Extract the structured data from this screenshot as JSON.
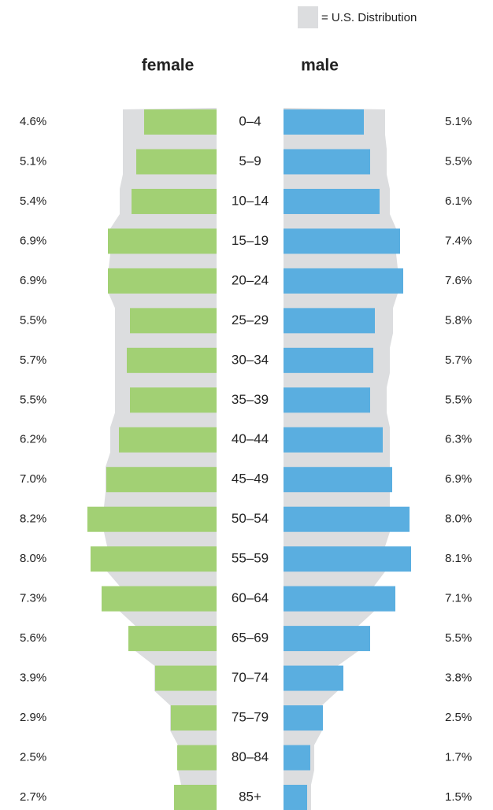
{
  "chart_data": {
    "type": "pyramid",
    "legend": {
      "label": "= U.S. Distribution",
      "color": "#dcdddf"
    },
    "categories": [
      "0–4",
      "5–9",
      "10–14",
      "15–19",
      "20–24",
      "25–29",
      "30–34",
      "35–39",
      "40–44",
      "45–49",
      "50–54",
      "55–59",
      "60–64",
      "65–69",
      "70–74",
      "75–79",
      "80–84",
      "85+"
    ],
    "series": [
      {
        "name": "female",
        "color": "#a2d074",
        "values": [
          4.6,
          5.1,
          5.4,
          6.9,
          6.9,
          5.5,
          5.7,
          5.5,
          6.2,
          7.0,
          8.2,
          8.0,
          7.3,
          5.6,
          3.9,
          2.9,
          2.5,
          2.7
        ],
        "value_labels": [
          "4.6%",
          "5.1%",
          "5.4%",
          "6.9%",
          "6.9%",
          "5.5%",
          "5.7%",
          "5.5%",
          "6.2%",
          "7.0%",
          "8.2%",
          "8.0%",
          "7.3%",
          "5.6%",
          "3.9%",
          "2.9%",
          "2.5%",
          "2.7%"
        ]
      },
      {
        "name": "male",
        "color": "#5aaee0",
        "values": [
          5.1,
          5.5,
          6.1,
          7.4,
          7.6,
          5.8,
          5.7,
          5.5,
          6.3,
          6.9,
          8.0,
          8.1,
          7.1,
          5.5,
          3.8,
          2.5,
          1.7,
          1.5
        ],
        "value_labels": [
          "5.1%",
          "5.5%",
          "6.1%",
          "7.4%",
          "7.6%",
          "5.8%",
          "5.7%",
          "5.5%",
          "6.3%",
          "6.9%",
          "8.0%",
          "8.1%",
          "7.1%",
          "5.5%",
          "3.8%",
          "2.5%",
          "1.7%",
          "1.5%"
        ]
      }
    ],
    "us_distribution": {
      "female": [
        6.0,
        6.0,
        6.2,
        6.8,
        6.9,
        6.5,
        6.5,
        6.5,
        6.8,
        7.1,
        7.2,
        7.0,
        6.2,
        5.2,
        4.0,
        3.0,
        2.5,
        2.3
      ],
      "male": [
        6.5,
        6.6,
        6.8,
        7.2,
        7.3,
        7.0,
        6.8,
        6.6,
        6.8,
        6.8,
        6.8,
        6.5,
        5.8,
        4.8,
        3.5,
        2.5,
        2.0,
        1.8
      ]
    }
  }
}
